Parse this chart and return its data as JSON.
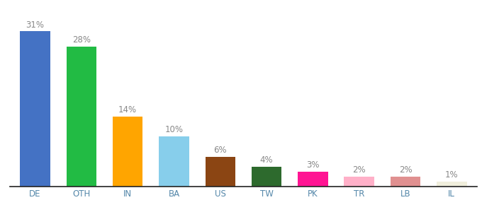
{
  "categories": [
    "DE",
    "OTH",
    "IN",
    "BA",
    "US",
    "TW",
    "PK",
    "TR",
    "LB",
    "IL"
  ],
  "values": [
    31,
    28,
    14,
    10,
    6,
    4,
    3,
    2,
    2,
    1
  ],
  "labels": [
    "31%",
    "28%",
    "14%",
    "10%",
    "6%",
    "4%",
    "3%",
    "2%",
    "2%",
    "1%"
  ],
  "bar_colors": [
    "#4472c4",
    "#22bb44",
    "#ffa500",
    "#87ceeb",
    "#8b4513",
    "#2d6a2d",
    "#ff1493",
    "#ffb0c8",
    "#e09090",
    "#f0eedc"
  ],
  "ylim": [
    0,
    36
  ],
  "background_color": "#ffffff",
  "label_fontsize": 8.5,
  "tick_fontsize": 8.5,
  "label_color": "#888888",
  "tick_color": "#5588aa",
  "bar_width": 0.65,
  "spine_color": "#222222"
}
